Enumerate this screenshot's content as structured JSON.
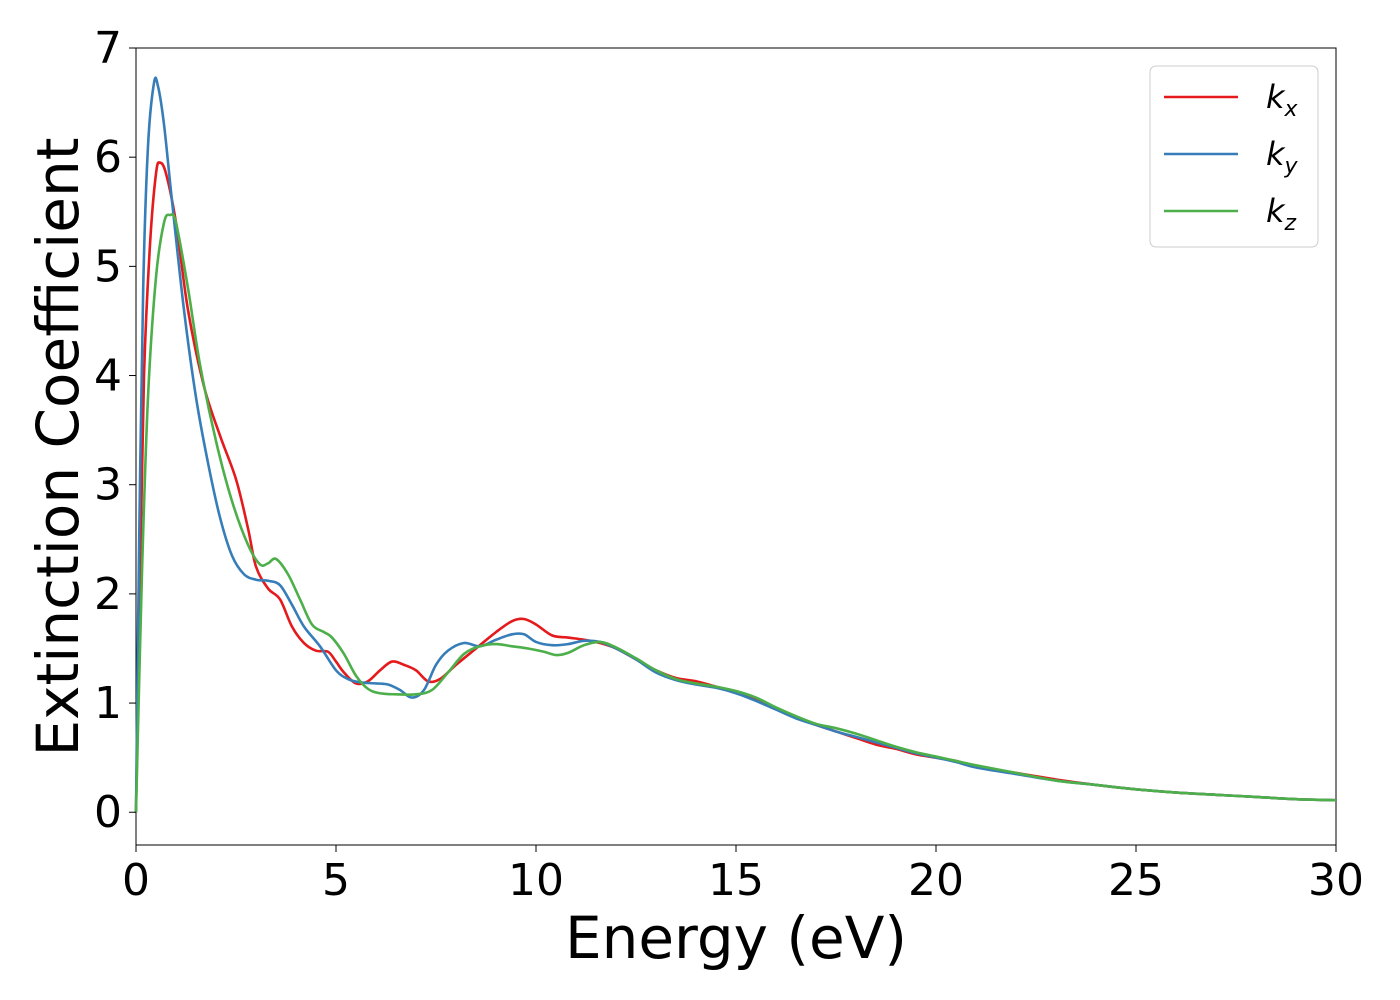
{
  "chart_data": {
    "type": "line",
    "title": "",
    "xlabel": "Energy (eV)",
    "ylabel": "Extinction Coefficient",
    "xlim": [
      0,
      30
    ],
    "ylim": [
      -0.3,
      7
    ],
    "xticks": [
      "0",
      "5",
      "10",
      "15",
      "20",
      "25",
      "30"
    ],
    "yticks": [
      "0",
      "1",
      "2",
      "3",
      "4",
      "5",
      "6",
      "7"
    ],
    "grid": false,
    "legend_position": "top-right",
    "series": [
      {
        "name": "k_x",
        "label_main": "k",
        "label_sub": "x",
        "color": "#e41a1c",
        "points": [
          [
            0,
            0
          ],
          [
            0.1,
            2.2
          ],
          [
            0.2,
            4.0
          ],
          [
            0.35,
            5.2
          ],
          [
            0.5,
            5.85
          ],
          [
            0.6,
            5.95
          ],
          [
            0.75,
            5.85
          ],
          [
            1.0,
            5.4
          ],
          [
            1.3,
            4.6
          ],
          [
            1.7,
            3.9
          ],
          [
            2.1,
            3.45
          ],
          [
            2.5,
            3.05
          ],
          [
            2.8,
            2.6
          ],
          [
            3.0,
            2.25
          ],
          [
            3.3,
            2.05
          ],
          [
            3.6,
            1.95
          ],
          [
            3.9,
            1.7
          ],
          [
            4.2,
            1.55
          ],
          [
            4.5,
            1.48
          ],
          [
            4.8,
            1.47
          ],
          [
            5.0,
            1.38
          ],
          [
            5.2,
            1.28
          ],
          [
            5.5,
            1.18
          ],
          [
            5.8,
            1.2
          ],
          [
            6.1,
            1.3
          ],
          [
            6.4,
            1.38
          ],
          [
            6.7,
            1.35
          ],
          [
            7.0,
            1.3
          ],
          [
            7.3,
            1.2
          ],
          [
            7.6,
            1.22
          ],
          [
            8.0,
            1.35
          ],
          [
            8.5,
            1.5
          ],
          [
            9.0,
            1.65
          ],
          [
            9.4,
            1.75
          ],
          [
            9.7,
            1.77
          ],
          [
            10.0,
            1.72
          ],
          [
            10.4,
            1.62
          ],
          [
            10.8,
            1.6
          ],
          [
            11.2,
            1.58
          ],
          [
            11.6,
            1.55
          ],
          [
            12.0,
            1.5
          ],
          [
            12.5,
            1.4
          ],
          [
            13.0,
            1.3
          ],
          [
            13.5,
            1.23
          ],
          [
            14.0,
            1.2
          ],
          [
            14.5,
            1.15
          ],
          [
            15.0,
            1.1
          ],
          [
            15.5,
            1.03
          ],
          [
            16.0,
            0.95
          ],
          [
            16.5,
            0.87
          ],
          [
            17.0,
            0.8
          ],
          [
            17.5,
            0.74
          ],
          [
            18.0,
            0.68
          ],
          [
            18.5,
            0.62
          ],
          [
            19.0,
            0.58
          ],
          [
            19.5,
            0.53
          ],
          [
            20.0,
            0.5
          ],
          [
            20.5,
            0.47
          ],
          [
            21.0,
            0.42
          ],
          [
            22.0,
            0.36
          ],
          [
            23.0,
            0.3
          ],
          [
            24.0,
            0.25
          ],
          [
            25.0,
            0.21
          ],
          [
            26.0,
            0.18
          ],
          [
            27.0,
            0.16
          ],
          [
            28.0,
            0.14
          ],
          [
            29.0,
            0.12
          ],
          [
            30.0,
            0.11
          ]
        ]
      },
      {
        "name": "k_y",
        "label_main": "k",
        "label_sub": "y",
        "color": "#377eb8",
        "points": [
          [
            0,
            0
          ],
          [
            0.08,
            2.5
          ],
          [
            0.18,
            4.8
          ],
          [
            0.3,
            6.1
          ],
          [
            0.45,
            6.68
          ],
          [
            0.55,
            6.65
          ],
          [
            0.7,
            6.3
          ],
          [
            0.9,
            5.6
          ],
          [
            1.2,
            4.6
          ],
          [
            1.5,
            3.8
          ],
          [
            1.8,
            3.2
          ],
          [
            2.1,
            2.7
          ],
          [
            2.4,
            2.35
          ],
          [
            2.7,
            2.18
          ],
          [
            3.0,
            2.13
          ],
          [
            3.3,
            2.12
          ],
          [
            3.6,
            2.08
          ],
          [
            3.9,
            1.9
          ],
          [
            4.2,
            1.7
          ],
          [
            4.6,
            1.52
          ],
          [
            5.0,
            1.3
          ],
          [
            5.3,
            1.22
          ],
          [
            5.6,
            1.19
          ],
          [
            6.0,
            1.18
          ],
          [
            6.3,
            1.17
          ],
          [
            6.6,
            1.12
          ],
          [
            6.9,
            1.05
          ],
          [
            7.2,
            1.12
          ],
          [
            7.5,
            1.35
          ],
          [
            7.8,
            1.48
          ],
          [
            8.2,
            1.55
          ],
          [
            8.6,
            1.52
          ],
          [
            9.0,
            1.58
          ],
          [
            9.4,
            1.63
          ],
          [
            9.7,
            1.63
          ],
          [
            10.0,
            1.56
          ],
          [
            10.4,
            1.53
          ],
          [
            10.8,
            1.54
          ],
          [
            11.2,
            1.57
          ],
          [
            11.6,
            1.56
          ],
          [
            12.0,
            1.5
          ],
          [
            12.5,
            1.4
          ],
          [
            13.0,
            1.28
          ],
          [
            13.5,
            1.21
          ],
          [
            14.0,
            1.17
          ],
          [
            14.5,
            1.14
          ],
          [
            15.0,
            1.09
          ],
          [
            15.5,
            1.02
          ],
          [
            16.0,
            0.94
          ],
          [
            16.5,
            0.86
          ],
          [
            17.0,
            0.8
          ],
          [
            17.5,
            0.74
          ],
          [
            18.0,
            0.69
          ],
          [
            18.5,
            0.64
          ],
          [
            19.0,
            0.59
          ],
          [
            19.5,
            0.54
          ],
          [
            20.0,
            0.5
          ],
          [
            20.5,
            0.46
          ],
          [
            21.0,
            0.41
          ],
          [
            22.0,
            0.35
          ],
          [
            23.0,
            0.29
          ],
          [
            24.0,
            0.25
          ],
          [
            25.0,
            0.21
          ],
          [
            26.0,
            0.18
          ],
          [
            27.0,
            0.16
          ],
          [
            28.0,
            0.14
          ],
          [
            29.0,
            0.12
          ],
          [
            30.0,
            0.11
          ]
        ]
      },
      {
        "name": "k_z",
        "label_main": "k",
        "label_sub": "z",
        "color": "#4daf4a",
        "points": [
          [
            0,
            0
          ],
          [
            0.15,
            2.2
          ],
          [
            0.3,
            3.8
          ],
          [
            0.5,
            4.9
          ],
          [
            0.7,
            5.4
          ],
          [
            0.85,
            5.47
          ],
          [
            1.0,
            5.4
          ],
          [
            1.3,
            4.8
          ],
          [
            1.6,
            4.1
          ],
          [
            2.0,
            3.4
          ],
          [
            2.4,
            2.85
          ],
          [
            2.8,
            2.45
          ],
          [
            3.1,
            2.27
          ],
          [
            3.3,
            2.28
          ],
          [
            3.5,
            2.32
          ],
          [
            3.8,
            2.18
          ],
          [
            4.1,
            1.95
          ],
          [
            4.4,
            1.72
          ],
          [
            4.7,
            1.65
          ],
          [
            4.9,
            1.6
          ],
          [
            5.2,
            1.45
          ],
          [
            5.5,
            1.25
          ],
          [
            5.8,
            1.13
          ],
          [
            6.1,
            1.09
          ],
          [
            6.5,
            1.08
          ],
          [
            7.0,
            1.08
          ],
          [
            7.4,
            1.12
          ],
          [
            7.8,
            1.28
          ],
          [
            8.2,
            1.45
          ],
          [
            8.6,
            1.52
          ],
          [
            9.0,
            1.54
          ],
          [
            9.4,
            1.52
          ],
          [
            9.8,
            1.5
          ],
          [
            10.2,
            1.47
          ],
          [
            10.5,
            1.44
          ],
          [
            10.8,
            1.46
          ],
          [
            11.2,
            1.53
          ],
          [
            11.6,
            1.56
          ],
          [
            12.0,
            1.51
          ],
          [
            12.5,
            1.41
          ],
          [
            13.0,
            1.3
          ],
          [
            13.5,
            1.22
          ],
          [
            14.0,
            1.18
          ],
          [
            14.5,
            1.15
          ],
          [
            15.0,
            1.11
          ],
          [
            15.5,
            1.05
          ],
          [
            16.0,
            0.96
          ],
          [
            16.5,
            0.88
          ],
          [
            17.0,
            0.81
          ],
          [
            17.5,
            0.77
          ],
          [
            18.0,
            0.72
          ],
          [
            18.5,
            0.66
          ],
          [
            19.0,
            0.6
          ],
          [
            19.5,
            0.55
          ],
          [
            20.0,
            0.51
          ],
          [
            20.5,
            0.47
          ],
          [
            21.0,
            0.43
          ],
          [
            22.0,
            0.36
          ],
          [
            23.0,
            0.29
          ],
          [
            24.0,
            0.25
          ],
          [
            25.0,
            0.21
          ],
          [
            26.0,
            0.18
          ],
          [
            27.0,
            0.16
          ],
          [
            28.0,
            0.14
          ],
          [
            29.0,
            0.12
          ],
          [
            30.0,
            0.11
          ]
        ]
      }
    ]
  }
}
